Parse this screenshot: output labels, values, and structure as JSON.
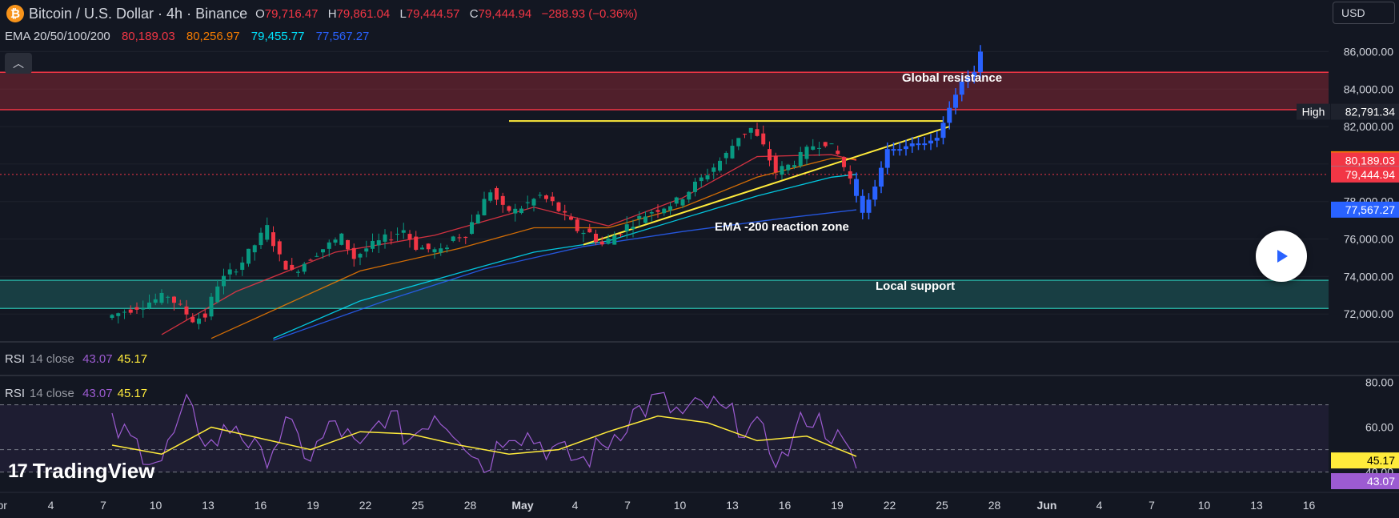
{
  "header": {
    "symbol_icon": "bitcoin-icon",
    "title": "Bitcoin / U.S. Dollar · 4h · Binance",
    "ohlc": [
      {
        "k": "O",
        "v": "79,716.47"
      },
      {
        "k": "H",
        "v": "79,861.04"
      },
      {
        "k": "L",
        "v": "79,444.57"
      },
      {
        "k": "C",
        "v": "79,444.94"
      }
    ],
    "change": "−288.93 (−0.36%)"
  },
  "ema_legend": {
    "label": "EMA 20/50/100/200",
    "values": [
      "80,189.03",
      "80,256.97",
      "79,455.77",
      "77,567.27"
    ],
    "colors": [
      "#f23645",
      "#f57c00",
      "#00e5ff",
      "#2962ff"
    ]
  },
  "currency_button": "USD",
  "collapse_icon": "chevron-up-icon",
  "play_icon": "play-icon",
  "rsi": {
    "label": "RSI",
    "params": "14 close",
    "value": "43.07",
    "ma_value": "45.17",
    "axis_ticks": [
      "80.00",
      "60.00",
      "40.00"
    ]
  },
  "branding": {
    "logo_text": "TradingView",
    "logo_icon": "tradingview-logo-icon"
  },
  "colors": {
    "background": "#131722",
    "up": "#089981",
    "down": "#f23645",
    "projection": "#2962ff",
    "trendline": "#ffeb3b",
    "rsi_line": "#9c5bd1",
    "rsi_ma": "#ffeb3b"
  },
  "chart_data": {
    "type": "candlestick",
    "price_axis_ticks": [
      "86,000.00",
      "84,000.00",
      "82,000.00",
      "80,000.00",
      "78,000.00",
      "76,000.00",
      "74,000.00",
      "72,000.00"
    ],
    "price_axis_values": [
      86000,
      84000,
      82000,
      80000,
      78000,
      76000,
      74000,
      72000
    ],
    "ylim": [
      70600,
      87300
    ],
    "price_labels": [
      {
        "label": "High",
        "text": "82,791.34",
        "value": 82791.34,
        "color": "#1e222d"
      },
      {
        "text": "80,256.97",
        "value": 80256.97,
        "color": "#f57c00"
      },
      {
        "text": "80,189.03",
        "value": 80189.03,
        "color": "#f23645"
      },
      {
        "text": "79,455.77",
        "value": 79455.77,
        "color": "#00e5ff"
      },
      {
        "text": "79,444.94",
        "value": 79444.94,
        "color": "#f23645"
      },
      {
        "text": "77,567.27",
        "value": 77567.27,
        "color": "#2962ff"
      }
    ],
    "time_axis_labels": [
      "Apr",
      "4",
      "7",
      "10",
      "13",
      "16",
      "19",
      "22",
      "25",
      "28",
      "May",
      "4",
      "7",
      "10",
      "13",
      "16",
      "19",
      "22",
      "25",
      "28",
      "Jun",
      "4",
      "7",
      "10",
      "13",
      "16"
    ],
    "zones": [
      {
        "name": "Global resistance",
        "from": 82900,
        "to": 84900,
        "color": "#f23645"
      },
      {
        "name": "Local support",
        "from": 72300,
        "to": 73800,
        "color": "#26a69a"
      }
    ],
    "annotations": [
      "Global resistance",
      "EMA -200 reaction zone",
      "Local support"
    ],
    "horizontal_level": 82300,
    "price_path": [
      [
        0,
        71800
      ],
      [
        5,
        73000
      ],
      [
        7,
        71700
      ],
      [
        8,
        71900
      ],
      [
        9,
        73600
      ],
      [
        11,
        74800
      ],
      [
        13,
        76600
      ],
      [
        14,
        75000
      ],
      [
        15,
        74200
      ],
      [
        17,
        75300
      ],
      [
        19,
        76100
      ],
      [
        20,
        75000
      ],
      [
        21,
        75500
      ],
      [
        24,
        76500
      ],
      [
        25,
        75600
      ],
      [
        27,
        75300
      ],
      [
        28,
        76100
      ],
      [
        29,
        76300
      ],
      [
        31,
        78600
      ],
      [
        32,
        77600
      ],
      [
        33,
        77500
      ],
      [
        35,
        78300
      ],
      [
        36,
        77900
      ],
      [
        38,
        76500
      ],
      [
        39,
        76300
      ],
      [
        40,
        75700
      ],
      [
        41,
        76200
      ],
      [
        42,
        76700
      ],
      [
        44,
        77500
      ],
      [
        46,
        78000
      ],
      [
        48,
        79200
      ],
      [
        50,
        80500
      ],
      [
        51,
        81500
      ],
      [
        52,
        81900
      ],
      [
        53,
        80900
      ],
      [
        54,
        79600
      ],
      [
        55,
        79900
      ],
      [
        56,
        80400
      ],
      [
        57,
        81000
      ],
      [
        58,
        81200
      ],
      [
        59,
        80500
      ],
      [
        60,
        79200
      ]
    ],
    "projection_path": [
      [
        60,
        79200
      ],
      [
        61,
        77400
      ],
      [
        62,
        78800
      ],
      [
        63,
        80800
      ],
      [
        64,
        80800
      ],
      [
        65,
        81100
      ],
      [
        66,
        81100
      ],
      [
        67,
        81400
      ],
      [
        68,
        83000
      ],
      [
        69,
        84400
      ],
      [
        70,
        84900
      ],
      [
        70.5,
        86000
      ]
    ],
    "ema_series": [
      {
        "name": "EMA 20",
        "color": "#f23645",
        "points": [
          [
            4,
            70900
          ],
          [
            10,
            73200
          ],
          [
            18,
            75300
          ],
          [
            26,
            76200
          ],
          [
            34,
            77700
          ],
          [
            40,
            76700
          ],
          [
            46,
            78200
          ],
          [
            52,
            80400
          ],
          [
            58,
            80500
          ],
          [
            60,
            80200
          ]
        ]
      },
      {
        "name": "EMA 50",
        "color": "#f57c00",
        "points": [
          [
            8,
            70700
          ],
          [
            14,
            72500
          ],
          [
            20,
            74300
          ],
          [
            28,
            75500
          ],
          [
            34,
            76600
          ],
          [
            40,
            76600
          ],
          [
            46,
            77700
          ],
          [
            52,
            79300
          ],
          [
            58,
            80300
          ],
          [
            60,
            80260
          ]
        ]
      },
      {
        "name": "EMA 100",
        "color": "#00e5ff",
        "points": [
          [
            13,
            70700
          ],
          [
            20,
            72700
          ],
          [
            28,
            74200
          ],
          [
            34,
            75300
          ],
          [
            40,
            75900
          ],
          [
            46,
            77100
          ],
          [
            52,
            78300
          ],
          [
            58,
            79300
          ],
          [
            60,
            79450
          ]
        ]
      },
      {
        "name": "EMA 200",
        "color": "#2962ff",
        "points": [
          [
            13,
            70600
          ],
          [
            22,
            72700
          ],
          [
            30,
            74400
          ],
          [
            38,
            75600
          ],
          [
            46,
            76400
          ],
          [
            54,
            77100
          ],
          [
            60,
            77560
          ]
        ]
      }
    ],
    "trendlines": [
      {
        "from": [
          32,
          82300
        ],
        "to": [
          67,
          82300
        ]
      },
      {
        "from": [
          38,
          75700
        ],
        "to": [
          67.5,
          82000
        ]
      }
    ],
    "rsi_series_points": [
      [
        0,
        60
      ],
      [
        2,
        52
      ],
      [
        4,
        45
      ],
      [
        6,
        68
      ],
      [
        8,
        52
      ],
      [
        10,
        62
      ],
      [
        12,
        45
      ],
      [
        14,
        60
      ],
      [
        16,
        47
      ],
      [
        18,
        62
      ],
      [
        20,
        48
      ],
      [
        22,
        66
      ],
      [
        24,
        55
      ],
      [
        26,
        67
      ],
      [
        28,
        58
      ],
      [
        30,
        42
      ],
      [
        32,
        60
      ],
      [
        34,
        55
      ],
      [
        36,
        48
      ],
      [
        38,
        45
      ],
      [
        40,
        54
      ],
      [
        42,
        66
      ],
      [
        44,
        72
      ],
      [
        46,
        65
      ],
      [
        48,
        70
      ],
      [
        50,
        64
      ],
      [
        52,
        58
      ],
      [
        54,
        45
      ],
      [
        56,
        66
      ],
      [
        58,
        58
      ],
      [
        60,
        42
      ]
    ],
    "rsi_ma_points": [
      [
        0,
        52
      ],
      [
        4,
        48
      ],
      [
        8,
        60
      ],
      [
        12,
        55
      ],
      [
        16,
        50
      ],
      [
        20,
        58
      ],
      [
        24,
        57
      ],
      [
        28,
        52
      ],
      [
        32,
        48
      ],
      [
        36,
        50
      ],
      [
        40,
        58
      ],
      [
        44,
        65
      ],
      [
        48,
        62
      ],
      [
        52,
        54
      ],
      [
        56,
        56
      ],
      [
        60,
        47
      ]
    ],
    "rsi_ylim": [
      32,
      82
    ]
  }
}
